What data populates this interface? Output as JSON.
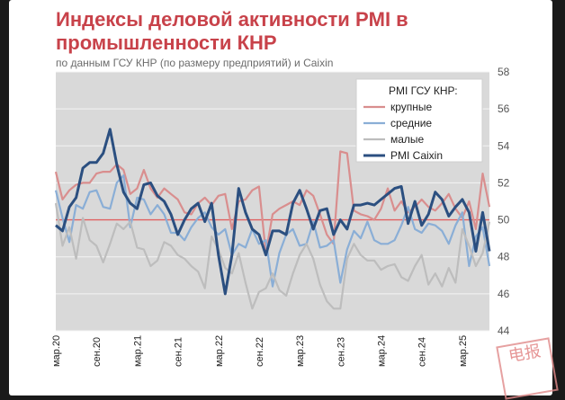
{
  "title_line1": "Индексы деловой активности PMI в",
  "title_line2": "промышленности КНР",
  "subtitle": "по данным ГСУ КНР (по размеру предприятий) и Caixin",
  "stamp_text": "电报",
  "chart_data": {
    "type": "line",
    "ylim": [
      44,
      58
    ],
    "yticks": [
      44,
      46,
      48,
      50,
      52,
      54,
      56,
      58
    ],
    "xlim": [
      0,
      64
    ],
    "x_ticks": [
      {
        "label": "мар.20",
        "index": 0
      },
      {
        "label": "сен.20",
        "index": 6
      },
      {
        "label": "мар.21",
        "index": 12
      },
      {
        "label": "сен.21",
        "index": 18
      },
      {
        "label": "мар.22",
        "index": 24
      },
      {
        "label": "сен.22",
        "index": 30
      },
      {
        "label": "мар.23",
        "index": 36
      },
      {
        "label": "сен.23",
        "index": 42
      },
      {
        "label": "мар.24",
        "index": 48
      },
      {
        "label": "сен.24",
        "index": 54
      },
      {
        "label": "мар.25",
        "index": 60
      }
    ],
    "grid": true,
    "reference_line": 50,
    "legend": {
      "title": "PMI ГСУ КНР:",
      "position": "top-right"
    },
    "series": [
      {
        "name": "крупные",
        "color": "#d98e8e",
        "width": 2.2,
        "values": [
          52.6,
          51.1,
          51.6,
          51.9,
          52.0,
          52.0,
          52.5,
          52.6,
          52.6,
          53.0,
          52.7,
          51.4,
          51.7,
          52.7,
          51.7,
          51.2,
          51.7,
          51.4,
          51.1,
          50.4,
          50.3,
          50.9,
          51.2,
          50.8,
          51.3,
          51.4,
          49.5,
          51.0,
          51.1,
          51.6,
          51.8,
          48.2,
          50.3,
          50.6,
          50.8,
          51.0,
          50.8,
          51.6,
          51.3,
          50.3,
          49.2,
          48.7,
          53.7,
          53.6,
          50.5,
          50.3,
          50.2,
          50.0,
          50.6,
          51.7,
          50.5,
          51.0,
          50.4,
          50.7,
          51.1,
          50.7,
          50.5,
          50.9,
          51.4,
          50.6,
          50.1,
          51.0,
          49.5,
          52.5,
          50.7
        ]
      },
      {
        "name": "средние",
        "color": "#8aaed6",
        "width": 2.2,
        "values": [
          51.6,
          50.1,
          48.8,
          50.8,
          50.6,
          51.5,
          51.6,
          50.7,
          50.6,
          52.0,
          52.4,
          49.6,
          51.2,
          51.1,
          50.3,
          50.8,
          50.3,
          49.3,
          49.3,
          48.9,
          49.6,
          50.1,
          50.4,
          49.6,
          49.2,
          49.5,
          48.1,
          48.7,
          48.5,
          49.5,
          48.7,
          48.9,
          46.4,
          48.2,
          49.2,
          49.5,
          48.6,
          48.7,
          49.9,
          48.5,
          48.6,
          48.9,
          46.6,
          48.4,
          49.4,
          49.0,
          49.9,
          48.9,
          48.7,
          48.7,
          48.9,
          49.7,
          50.7,
          49.5,
          49.3,
          49.8,
          49.7,
          49.4,
          48.7,
          49.7,
          50.4,
          47.5,
          49.1,
          49.6,
          47.5
        ]
      },
      {
        "name": "малые",
        "color": "#bdbdbd",
        "width": 2.2,
        "values": [
          50.9,
          48.6,
          49.6,
          47.9,
          50.1,
          48.9,
          48.6,
          47.7,
          48.7,
          49.8,
          49.5,
          49.9,
          48.5,
          48.4,
          47.5,
          47.8,
          48.8,
          48.6,
          48.1,
          47.9,
          47.5,
          47.2,
          46.3,
          49.1,
          48.4,
          47.4,
          47.1,
          48.2,
          46.6,
          45.2,
          46.1,
          46.3,
          47.1,
          46.2,
          45.9,
          47.1,
          48.1,
          48.7,
          47.9,
          46.5,
          45.6,
          45.2,
          45.2,
          47.9,
          48.7,
          48.1,
          47.8,
          47.8,
          47.3,
          47.5,
          47.6,
          46.9,
          46.7,
          47.5,
          48.1,
          46.5,
          47.1,
          46.4,
          47.4,
          46.6,
          49.5,
          48.6,
          47.5,
          48.2,
          49.9
        ]
      },
      {
        "name": "PMI Caixin",
        "color": "#2b4f80",
        "width": 3,
        "values": [
          49.7,
          49.4,
          50.7,
          51.2,
          52.8,
          53.1,
          53.1,
          53.6,
          54.9,
          53.0,
          51.5,
          50.9,
          50.6,
          51.9,
          52.0,
          51.3,
          51.0,
          50.3,
          49.2,
          50.0,
          50.6,
          50.9,
          49.9,
          50.9,
          48.1,
          46.0,
          48.1,
          51.7,
          50.4,
          49.5,
          49.2,
          48.1,
          49.4,
          49.4,
          49.2,
          50.9,
          51.6,
          50.6,
          49.5,
          50.5,
          50.6,
          49.2,
          50.0,
          49.5,
          50.8,
          50.8,
          50.9,
          50.8,
          51.1,
          51.4,
          51.7,
          51.8,
          49.8,
          51.0,
          49.7,
          50.3,
          51.5,
          51.1,
          50.2,
          50.7,
          51.1,
          50.4,
          48.3,
          50.4,
          48.3
        ]
      }
    ]
  }
}
